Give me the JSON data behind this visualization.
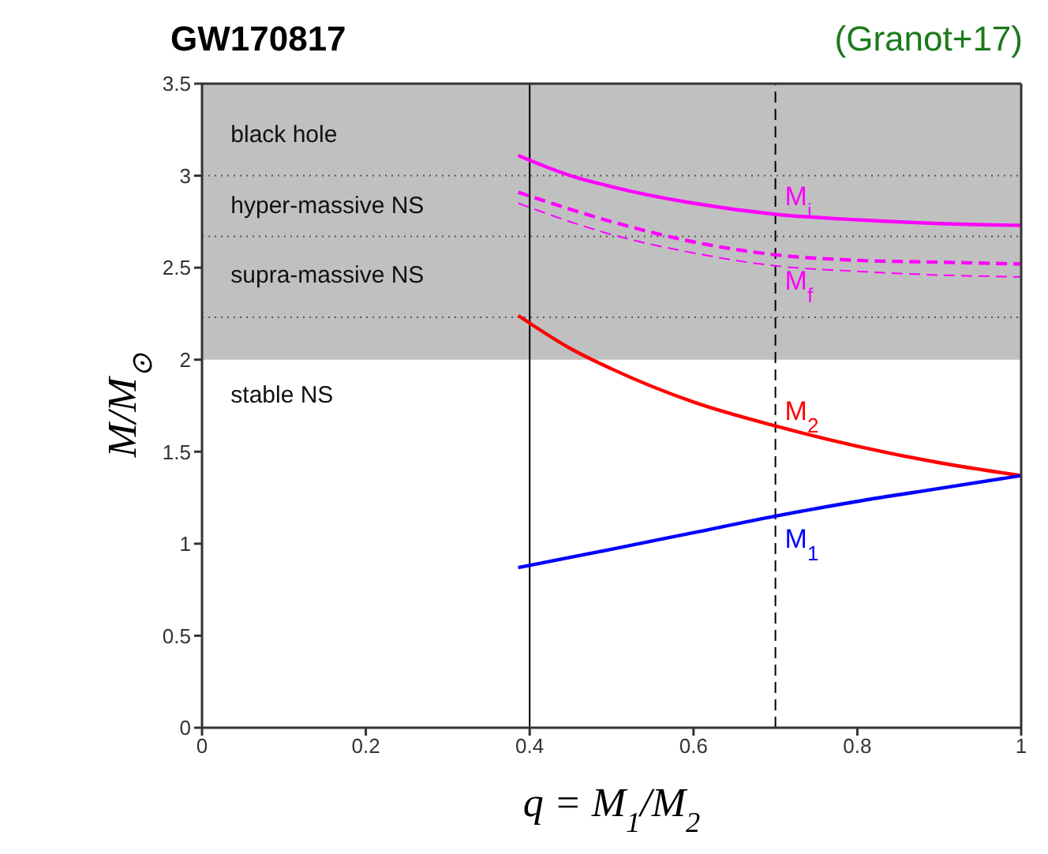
{
  "chart_data": {
    "type": "line",
    "title": "GW170817",
    "xlabel": "q = M$_{1}$/M$_{2}$",
    "ylabel": "M/M$_{⊙}$",
    "annotations": [
      "(Granot+17)",
      "black hole",
      "hyper-massive NS",
      "supra-massive NS",
      "stable NS"
    ],
    "xlim": [
      0,
      1
    ],
    "xticks": [
      0,
      0.2,
      0.4,
      0.6,
      0.8,
      1
    ],
    "ylim": [
      0,
      3.5
    ],
    "yticks": [
      0,
      0.5,
      1,
      1.5,
      2,
      2.5,
      3,
      3.5
    ],
    "grid": false,
    "line_style": "solid",
    "series": [
      {
        "name": "M$_{i}$",
        "color": "#ff00ff",
        "x": [
          0.386,
          0.45,
          0.5,
          0.6,
          0.7,
          0.8,
          0.9,
          1.0
        ],
        "values": [
          3.11,
          3.0,
          2.94,
          2.85,
          2.79,
          2.76,
          2.74,
          2.73
        ]
      },
      {
        "name": "M$_{f}$",
        "color": "#ff00ff",
        "line_style": "dashed",
        "x": [
          0.386,
          0.5,
          0.6,
          0.7,
          0.8,
          0.9,
          1.0
        ],
        "values": [
          2.91,
          2.75,
          2.64,
          2.57,
          2.54,
          2.53,
          2.52
        ]
      },
      {
        "color": "#ff00ff",
        "line_style": "dashed",
        "x": [
          0.386,
          0.5,
          0.6,
          0.7,
          0.8,
          0.9,
          1.0
        ],
        "values": [
          2.85,
          2.68,
          2.58,
          2.51,
          2.48,
          2.46,
          2.45
        ]
      },
      {
        "name": "M$_{2}$",
        "color": "#ff0000",
        "x": [
          0.386,
          0.45,
          0.5,
          0.6,
          0.7,
          0.8,
          0.9,
          1.0
        ],
        "values": [
          2.24,
          2.06,
          1.95,
          1.77,
          1.64,
          1.53,
          1.44,
          1.37
        ]
      },
      {
        "name": "M$_{1}$",
        "color": "#0000ff",
        "x": [
          0.386,
          0.5,
          0.6,
          0.7,
          0.8,
          0.9,
          1.0
        ],
        "values": [
          0.87,
          0.97,
          1.06,
          1.15,
          1.23,
          1.3,
          1.37
        ]
      }
    ],
    "bands": [
      {
        "axis": "y",
        "from": 2,
        "to": 3.5,
        "color": "#c0c0c0"
      }
    ],
    "ref_lines": [
      {
        "axis": "y",
        "value": 3.0,
        "line_style": "dotted",
        "color": "#555555"
      },
      {
        "axis": "y",
        "value": 2.67,
        "line_style": "dotted",
        "color": "#555555"
      },
      {
        "axis": "y",
        "value": 2.23,
        "line_style": "dotted",
        "color": "#555555"
      },
      {
        "axis": "x",
        "value": 0.4,
        "line_style": "solid",
        "color": "#000000"
      },
      {
        "axis": "x",
        "value": 0.7,
        "line_style": "dashed",
        "color": "#000000"
      }
    ]
  }
}
